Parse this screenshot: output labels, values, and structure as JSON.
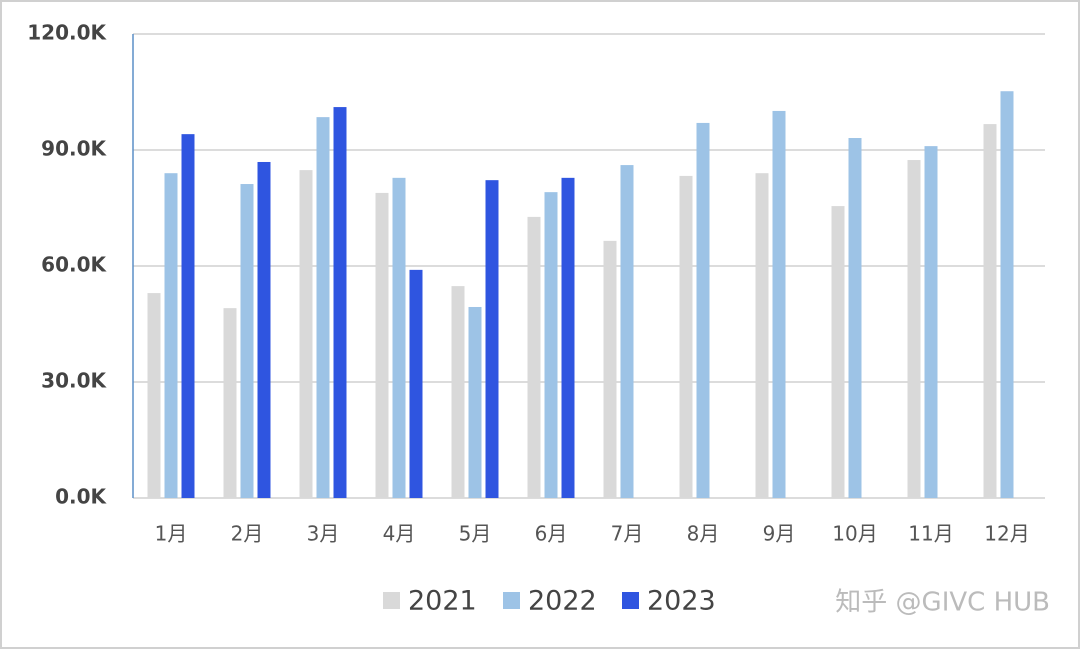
{
  "chart_data": {
    "type": "bar",
    "categories": [
      "1月",
      "2月",
      "3月",
      "4月",
      "5月",
      "6月",
      "7月",
      "8月",
      "9月",
      "10月",
      "11月",
      "12月"
    ],
    "series": [
      {
        "name": "2021",
        "color": "#d9d9d9",
        "values": [
          53000,
          49100,
          84800,
          78900,
          54800,
          72700,
          66500,
          83300,
          84000,
          75500,
          87400,
          96700
        ]
      },
      {
        "name": "2022",
        "color": "#9dc3e6",
        "values": [
          84000,
          81200,
          98500,
          82800,
          49400,
          79100,
          86100,
          97000,
          100100,
          93100,
          91000,
          105200
        ]
      },
      {
        "name": "2023",
        "color": "#2f55e0",
        "values": [
          94100,
          86900,
          101100,
          59000,
          82200,
          82800,
          null,
          null,
          null,
          null,
          null,
          null
        ]
      }
    ],
    "ylim": [
      0,
      120000
    ],
    "yticks": [
      {
        "value": 0,
        "label": "0.0K"
      },
      {
        "value": 30000,
        "label": "30.0K"
      },
      {
        "value": 60000,
        "label": "60.0K"
      },
      {
        "value": 90000,
        "label": "90.0K"
      },
      {
        "value": 120000,
        "label": "120.0K"
      }
    ],
    "grid": true,
    "watermark": "知乎 @GIVC HUB"
  }
}
